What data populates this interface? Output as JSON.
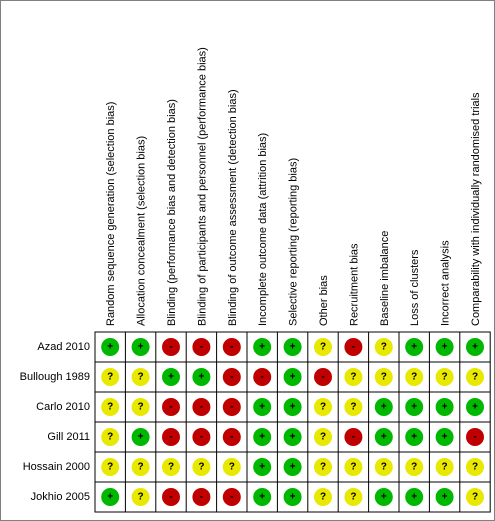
{
  "table": {
    "columns": [
      "Random sequence generation (selection bias)",
      "Allocation concealment (selection bias)",
      "Blinding (performance bias and detection bias)",
      "Blinding of participants and personnel (performance bias)",
      "Blinding of outcome assessment (detection bias)",
      "Incomplete outcome data (attrition bias)",
      "Selective reporting (reporting bias)",
      "Other bias",
      "Recruitment bias",
      "Baseline imbalance",
      "Loss of clusters",
      "Incorrect analysis",
      "Comparability with individually randomised trials"
    ],
    "rows": [
      {
        "study": "Azad 2010",
        "judgements": [
          "+",
          "+",
          "-",
          "-",
          "-",
          "+",
          "+",
          "?",
          "-",
          "?",
          "+",
          "+",
          "+"
        ]
      },
      {
        "study": "Bullough 1989",
        "judgements": [
          "?",
          "?",
          "+",
          "+",
          "-",
          "-",
          "+",
          "-",
          "?",
          "?",
          "?",
          "?",
          "?"
        ]
      },
      {
        "study": "Carlo 2010",
        "judgements": [
          "?",
          "?",
          "-",
          "-",
          "-",
          "+",
          "+",
          "?",
          "?",
          "+",
          "+",
          "+",
          "+"
        ]
      },
      {
        "study": "Gill 2011",
        "judgements": [
          "?",
          "+",
          "-",
          "-",
          "-",
          "+",
          "+",
          "?",
          "-",
          "+",
          "+",
          "+",
          "-"
        ]
      },
      {
        "study": "Hossain 2000",
        "judgements": [
          "?",
          "?",
          "?",
          "?",
          "?",
          "+",
          "+",
          "?",
          "?",
          "?",
          "?",
          "?",
          "?"
        ]
      },
      {
        "study": "Jokhio 2005",
        "judgements": [
          "+",
          "?",
          "-",
          "-",
          "-",
          "+",
          "+",
          "?",
          "?",
          "+",
          "+",
          "+",
          "?"
        ]
      }
    ]
  }
}
